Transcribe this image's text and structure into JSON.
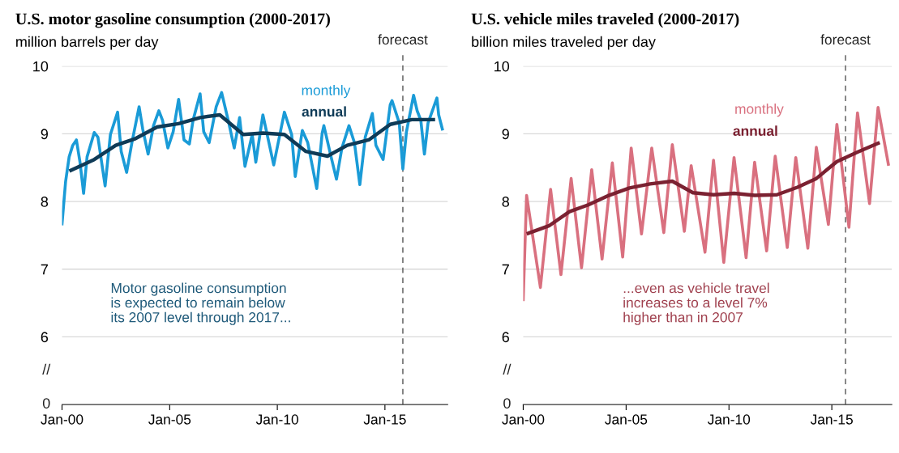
{
  "chart_data": [
    {
      "type": "line",
      "title": "U.S. motor gasoline consumption (2000-2017)",
      "subtitle": "million barrels per day",
      "xlim": [
        "2000-01",
        "2017-12"
      ],
      "xticks": [
        {
          "value": "2000-01",
          "label": "Jan-00"
        },
        {
          "value": "2005-01",
          "label": "Jan-05"
        },
        {
          "value": "2010-01",
          "label": "Jan-10"
        },
        {
          "value": "2015-01",
          "label": "Jan-15"
        }
      ],
      "ylim": [
        5,
        10
      ],
      "yticks": [
        6,
        7,
        8,
        9,
        10
      ],
      "grid": "y",
      "ref_lines": [
        {
          "axis": "x",
          "value": "2015-11",
          "label": "forecast",
          "color": "#555555",
          "line_style": "dashed"
        }
      ],
      "annotations": [
        "Motor gasoline consumption\nis expected to remain below\nits 2007 level through 2017...",
        "//",
        "0"
      ],
      "series": [
        {
          "name": "monthly",
          "color": "#1a9bd7",
          "x": [
            "2000-01",
            "2000-03",
            "2000-05",
            "2000-07",
            "2000-09",
            "2000-11",
            "2001-01",
            "2001-03",
            "2001-07",
            "2001-09",
            "2002-01",
            "2002-04",
            "2002-08",
            "2002-10",
            "2003-01",
            "2003-04",
            "2003-08",
            "2003-10",
            "2004-01",
            "2004-04",
            "2004-07",
            "2004-09",
            "2004-12",
            "2005-03",
            "2005-06",
            "2005-09",
            "2005-12",
            "2006-02",
            "2006-06",
            "2006-08",
            "2006-11",
            "2007-03",
            "2007-06",
            "2007-10",
            "2008-01",
            "2008-04",
            "2008-07",
            "2008-11",
            "2009-01",
            "2009-05",
            "2009-08",
            "2009-11",
            "2010-05",
            "2010-09",
            "2010-11",
            "2011-03",
            "2011-06",
            "2011-11",
            "2012-02",
            "2012-03",
            "2012-07",
            "2012-10",
            "2013-01",
            "2013-05",
            "2013-08",
            "2013-11",
            "2014-02",
            "2014-06",
            "2014-08",
            "2014-12",
            "2015-04",
            "2015-05",
            "2015-09",
            "2015-11",
            "2016-01",
            "2016-05",
            "2016-07",
            "2016-09",
            "2016-11",
            "2017-01",
            "2017-06",
            "2017-07",
            "2017-09"
          ],
          "values": [
            7.67,
            8.29,
            8.66,
            8.83,
            8.91,
            8.58,
            8.12,
            8.66,
            9.02,
            8.95,
            8.23,
            8.99,
            9.32,
            8.74,
            8.43,
            8.87,
            9.4,
            9.07,
            8.7,
            9.12,
            9.34,
            9.2,
            8.79,
            9.03,
            9.51,
            8.91,
            8.85,
            9.2,
            9.59,
            9.03,
            8.87,
            9.4,
            9.61,
            9.16,
            8.79,
            9.24,
            8.52,
            8.99,
            8.58,
            9.28,
            8.91,
            8.54,
            9.32,
            8.99,
            8.37,
            9.05,
            8.87,
            8.19,
            9.01,
            9.12,
            8.66,
            8.33,
            8.79,
            9.12,
            8.87,
            8.25,
            8.95,
            9.3,
            8.83,
            8.62,
            9.43,
            9.49,
            9.16,
            8.48,
            9.03,
            9.57,
            9.34,
            9.2,
            8.7,
            9.16,
            9.53,
            9.28,
            9.07
          ]
        },
        {
          "name": "annual",
          "color": "#0f3b57",
          "x": [
            "2000-06",
            "2001-07",
            "2002-07",
            "2003-06",
            "2004-06",
            "2005-06",
            "2006-06",
            "2007-05",
            "2008-06",
            "2009-05",
            "2010-05",
            "2011-05",
            "2012-05",
            "2013-04",
            "2014-04",
            "2015-04",
            "2016-04",
            "2017-04"
          ],
          "values": [
            8.46,
            8.62,
            8.83,
            8.93,
            9.1,
            9.15,
            9.24,
            9.28,
            8.99,
            9.01,
            8.99,
            8.74,
            8.67,
            8.83,
            8.91,
            9.14,
            9.21,
            9.21
          ]
        }
      ]
    },
    {
      "type": "line",
      "title": "U.S. vehicle miles traveled (2000-2017)",
      "subtitle": "billion miles traveled per day",
      "xlim": [
        "2000-01",
        "2017-12"
      ],
      "xticks": [
        {
          "value": "2000-01",
          "label": "Jan-00"
        },
        {
          "value": "2005-01",
          "label": "Jan-05"
        },
        {
          "value": "2010-01",
          "label": "Jan-10"
        },
        {
          "value": "2015-01",
          "label": "Jan-15"
        }
      ],
      "ylim": [
        5,
        10
      ],
      "yticks": [
        6,
        7,
        8,
        9,
        10
      ],
      "grid": "y",
      "ref_lines": [
        {
          "axis": "x",
          "value": "2015-09",
          "label": "forecast",
          "color": "#555555",
          "line_style": "dashed"
        }
      ],
      "annotations": [
        "...even as vehicle travel\nincreases to a level 7%\nhigher than in 2007",
        "//",
        "0"
      ],
      "series": [
        {
          "name": "monthly",
          "color": "#d9707f",
          "x": [
            "2000-01",
            "2000-03",
            "2000-11",
            "2001-05",
            "2001-11",
            "2002-05",
            "2002-11",
            "2003-05",
            "2003-11",
            "2004-05",
            "2004-11",
            "2005-04",
            "2005-10",
            "2006-04",
            "2006-11",
            "2007-04",
            "2007-11",
            "2008-03",
            "2008-11",
            "2009-04",
            "2009-10",
            "2010-04",
            "2010-11",
            "2011-04",
            "2011-11",
            "2012-04",
            "2012-11",
            "2013-04",
            "2013-11",
            "2014-04",
            "2014-11",
            "2015-04",
            "2015-11",
            "2016-04",
            "2016-11",
            "2017-04",
            "2017-10"
          ],
          "values": [
            6.55,
            8.09,
            6.73,
            8.18,
            6.92,
            8.34,
            7.02,
            8.47,
            7.15,
            8.57,
            7.18,
            8.79,
            7.52,
            8.79,
            7.54,
            8.84,
            7.56,
            8.53,
            7.25,
            8.61,
            7.1,
            8.65,
            7.17,
            8.58,
            7.27,
            8.67,
            7.32,
            8.65,
            7.31,
            8.8,
            7.66,
            9.14,
            7.62,
            9.31,
            7.97,
            9.39,
            8.55
          ]
        },
        {
          "name": "annual",
          "color": "#7b2131",
          "x": [
            "2000-04",
            "2001-04",
            "2002-04",
            "2003-03",
            "2004-03",
            "2005-03",
            "2006-03",
            "2007-04",
            "2008-04",
            "2009-04",
            "2010-04",
            "2011-04",
            "2012-05",
            "2013-05",
            "2014-04",
            "2015-04",
            "2016-04",
            "2017-04"
          ],
          "values": [
            7.53,
            7.64,
            7.85,
            7.95,
            8.09,
            8.2,
            8.26,
            8.3,
            8.13,
            8.1,
            8.12,
            8.09,
            8.1,
            8.21,
            8.34,
            8.59,
            8.73,
            8.86
          ]
        }
      ]
    }
  ]
}
